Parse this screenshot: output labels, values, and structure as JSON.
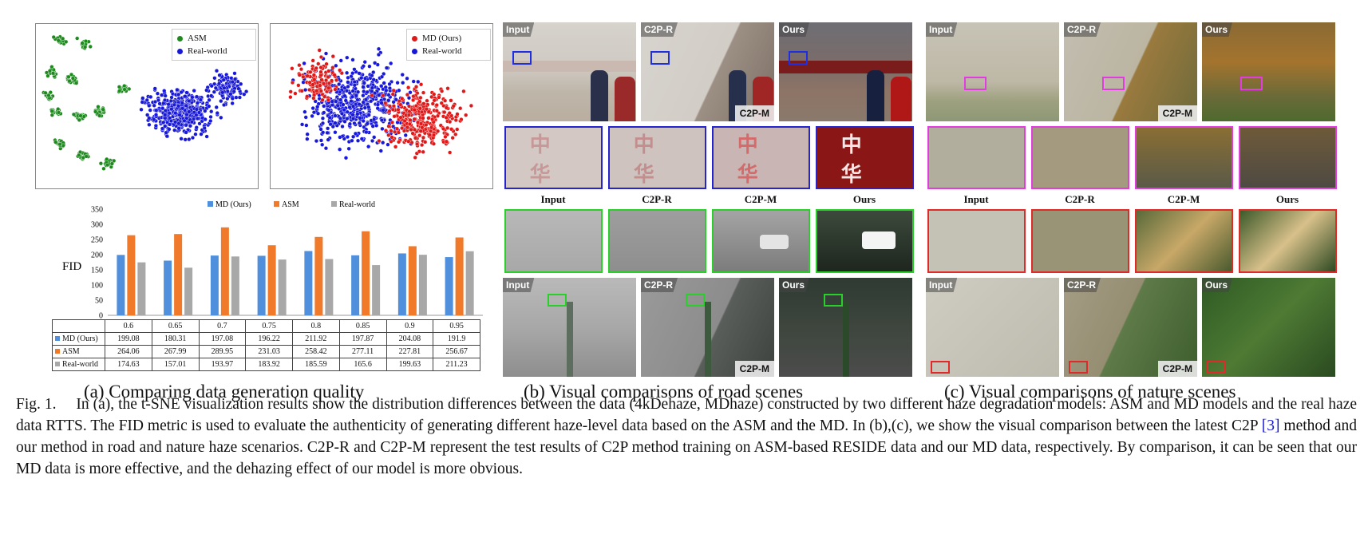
{
  "tsne_left": {
    "legend": [
      "ASM",
      "Real-world"
    ],
    "colors": {
      "asm": "#1e8a1e",
      "real": "#1818d8"
    }
  },
  "tsne_right": {
    "legend": [
      "MD (Ours)",
      "Real-world"
    ],
    "colors": {
      "md": "#e01818",
      "real": "#1818d8"
    }
  },
  "chart_data": {
    "type": "bar",
    "ylabel": "FID",
    "ylim": [
      0,
      350
    ],
    "yticks": [
      "0",
      "50",
      "100",
      "150",
      "200",
      "250",
      "300",
      "350"
    ],
    "categories": [
      "0.6",
      "0.65",
      "0.7",
      "0.75",
      "0.8",
      "0.85",
      "0.9",
      "0.95"
    ],
    "series": [
      {
        "name": "MD (Ours)",
        "color": "#4f8fdc",
        "values": [
          199.08,
          180.31,
          197.08,
          196.22,
          211.92,
          197.87,
          204.08,
          191.9
        ],
        "labels": [
          "199.08",
          "180.31",
          "197.08",
          "196.22",
          "211.92",
          "197.87",
          "204.08",
          "191.9"
        ]
      },
      {
        "name": "ASM",
        "color": "#f07a2a",
        "values": [
          264.06,
          267.99,
          289.95,
          231.03,
          258.42,
          277.11,
          227.81,
          256.67
        ],
        "labels": [
          "264.06",
          "267.99",
          "289.95",
          "231.03",
          "258.42",
          "277.11",
          "227.81",
          "256.67"
        ]
      },
      {
        "name": "Real-world",
        "color": "#a8a8a8",
        "values": [
          174.63,
          157.01,
          193.97,
          183.92,
          185.59,
          165.6,
          199.63,
          211.23
        ],
        "labels": [
          "174.63",
          "157.01",
          "193.97",
          "183.92",
          "185.59",
          "165.6",
          "199.63",
          "211.23"
        ]
      }
    ]
  },
  "subcaptions": {
    "a": "(a) Comparing data generation quality",
    "b": "(b) Visual comparisons of road scenes",
    "c": "(c) Visual comparisons of nature scenes"
  },
  "labels": {
    "input": "Input",
    "c2pr": "C2P-R",
    "c2pm": "C2P-M",
    "ours": "Ours",
    "sign_text": "中 华"
  },
  "caption": {
    "lead": "Fig. 1.",
    "part1": "In (a), the t-SNE visualization results show the distribution differences between the data (4kDehaze, MDhaze) constructed by two different haze degradation models: ASM and MD models and the real haze data RTTS. The FID metric is used to evaluate the authenticity of generating different haze-level data based on the ASM and the MD. In (b),(c), we show the visual comparison between the latest C2P ",
    "ref": "[3]",
    "part2": " method and our method in road and nature haze scenarios. C2P-R and C2P-M represent the test results of C2P method training on ASM-based RESIDE data and our MD data, respectively. By comparison, it can be seen that our MD data is more effective, and the dehazing effect of our model is more obvious."
  }
}
